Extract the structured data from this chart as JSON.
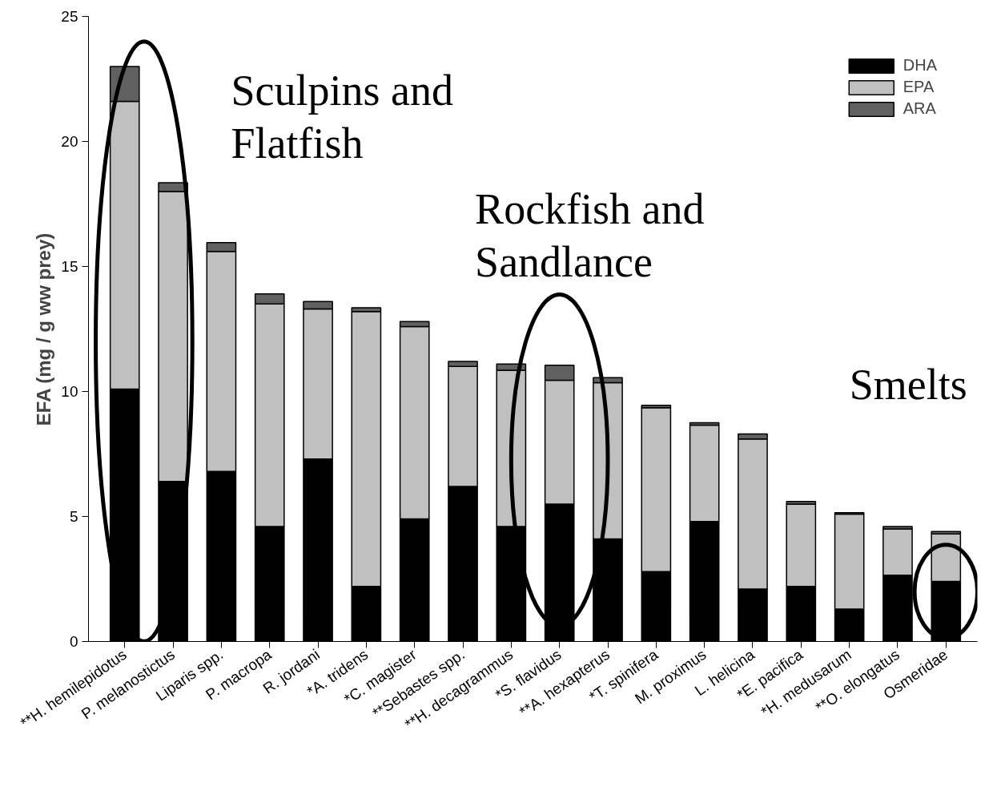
{
  "chart_data": {
    "type": "bar",
    "stacked": true,
    "ylabel": "EFA (mg / g ww prey)",
    "categories": [
      "**H. hemilepidotus",
      "P. melanostictus",
      "Liparis spp.",
      "P. macropa",
      "R. jordani",
      "*A. tridens",
      "*C. magister",
      "**Sebastes spp.",
      "**H. decagrammus",
      "*S. flavidus",
      "**A. hexapterus",
      "*T. spinifera",
      "M. proximus",
      "L. helicina",
      "*E. pacifica",
      "*H. medusarum",
      "**O. elongatus",
      "Osmeridae"
    ],
    "series": [
      {
        "name": "DHA",
        "color": "#000000",
        "values": [
          10.1,
          6.4,
          6.8,
          4.6,
          7.3,
          2.2,
          4.9,
          6.2,
          4.6,
          5.5,
          4.1,
          2.8,
          4.8,
          2.1,
          2.2,
          1.3,
          2.65,
          2.4
        ]
      },
      {
        "name": "EPA",
        "color": "#c0c0c0",
        "values": [
          11.5,
          11.6,
          8.8,
          8.9,
          6.0,
          11.0,
          7.7,
          4.8,
          6.25,
          4.95,
          6.25,
          6.55,
          3.85,
          6.0,
          3.3,
          3.8,
          1.85,
          1.9
        ]
      },
      {
        "name": "ARA",
        "color": "#606060",
        "values": [
          1.4,
          0.35,
          0.35,
          0.4,
          0.3,
          0.15,
          0.2,
          0.2,
          0.25,
          0.6,
          0.2,
          0.1,
          0.1,
          0.2,
          0.1,
          0.05,
          0.1,
          0.1
        ]
      }
    ],
    "ylim": [
      0,
      25
    ],
    "yticks": [
      0,
      5,
      10,
      15,
      20,
      25
    ],
    "grid": false,
    "legend": "top right",
    "annotations": [
      "Sculpins and Flatfish",
      "Rockfish and Sandlance",
      "Smelts"
    ]
  }
}
